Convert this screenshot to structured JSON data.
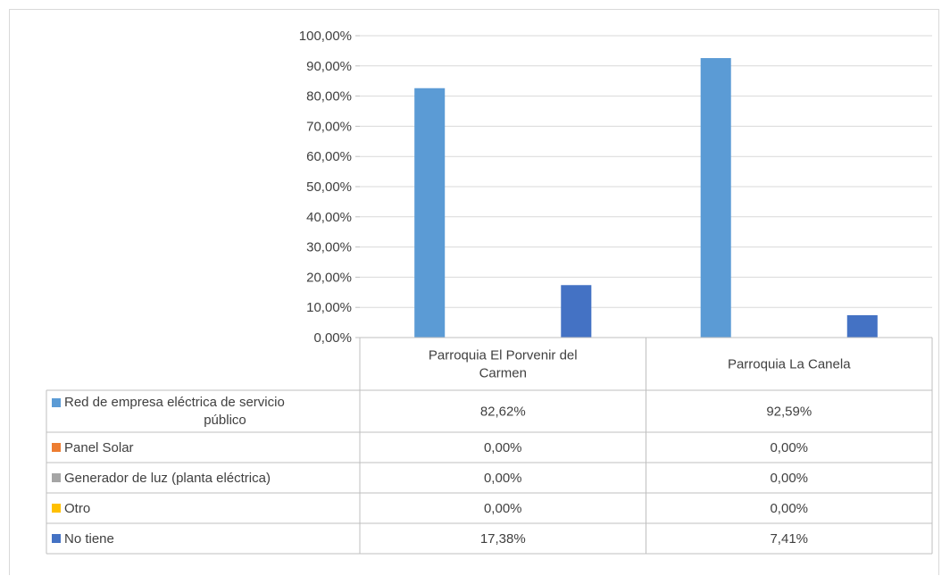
{
  "chart_data": {
    "type": "bar",
    "title": "",
    "xlabel": "",
    "ylabel": "",
    "ylim": [
      0,
      100
    ],
    "y_ticks": [
      "0,00%",
      "10,00%",
      "20,00%",
      "30,00%",
      "40,00%",
      "50,00%",
      "60,00%",
      "70,00%",
      "80,00%",
      "90,00%",
      "100,00%"
    ],
    "categories": [
      [
        "Parroquia El Porvenir del",
        "Carmen"
      ],
      [
        "Parroquia La Canela"
      ]
    ],
    "grid": true,
    "legend": "data-table",
    "series": [
      {
        "name": [
          "Red de empresa eléctrica de servicio",
          "público"
        ],
        "color": "#5b9bd5",
        "values": [
          82.62,
          92.59
        ],
        "labels": [
          "82,62%",
          "92,59%"
        ]
      },
      {
        "name": [
          "Panel Solar"
        ],
        "color": "#ed7d31",
        "values": [
          0.0,
          0.0
        ],
        "labels": [
          "0,00%",
          "0,00%"
        ]
      },
      {
        "name": [
          "Generador de luz (planta eléctrica)"
        ],
        "color": "#a5a5a5",
        "values": [
          0.0,
          0.0
        ],
        "labels": [
          "0,00%",
          "0,00%"
        ]
      },
      {
        "name": [
          "Otro"
        ],
        "color": "#ffc000",
        "values": [
          0.0,
          0.0
        ],
        "labels": [
          "0,00%",
          "0,00%"
        ]
      },
      {
        "name": [
          "No tiene"
        ],
        "color": "#4472c4",
        "values": [
          17.38,
          7.41
        ],
        "labels": [
          "17,38%",
          "7,41%"
        ]
      }
    ]
  }
}
